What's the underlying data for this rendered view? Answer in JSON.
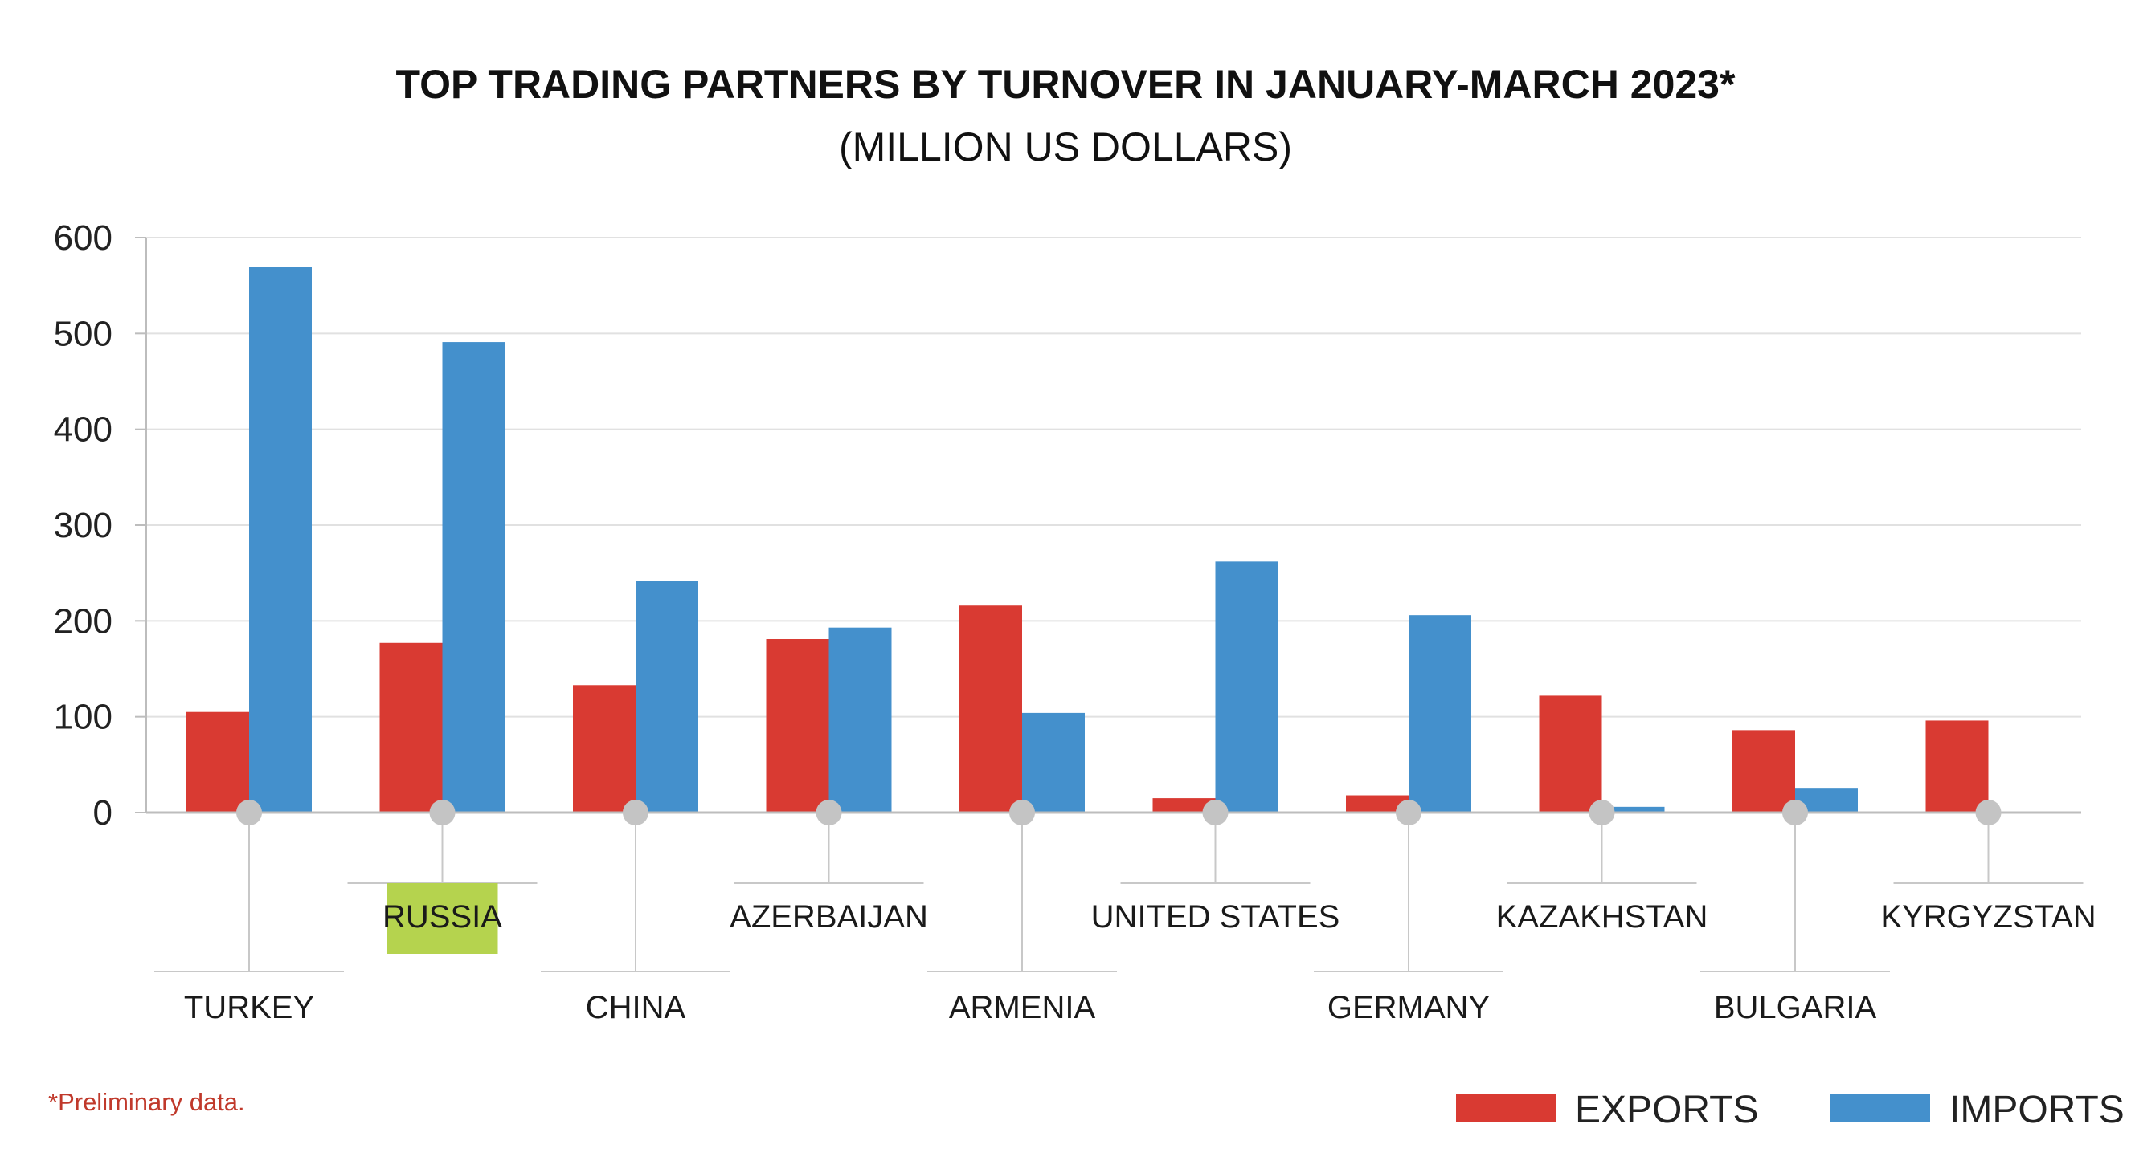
{
  "chart_data": {
    "type": "bar",
    "title": "TOP TRADING PARTNERS BY TURNOVER IN JANUARY-MARCH 2023*",
    "subtitle": "(MILLION US DOLLARS)",
    "categories": [
      "TURKEY",
      "RUSSIA",
      "CHINA",
      "AZERBAIJAN",
      "ARMENIA",
      "UNITED STATES",
      "GERMANY",
      "KAZAKHSTAN",
      "BULGARIA",
      "KYRGYZSTAN"
    ],
    "series": [
      {
        "name": "EXPORTS",
        "color": "#d93a32",
        "values": [
          105,
          177,
          133,
          181,
          216,
          15,
          18,
          122,
          86,
          96
        ]
      },
      {
        "name": "IMPORTS",
        "color": "#4490cc",
        "values": [
          569,
          491,
          242,
          193,
          104,
          262,
          206,
          6,
          25,
          1
        ]
      }
    ],
    "highlighted_category": "RUSSIA",
    "highlight_color": "#b5d34e",
    "ylim": [
      0,
      600
    ],
    "yticks": [
      0,
      100,
      200,
      300,
      400,
      500,
      600
    ],
    "grid": true,
    "legend_position": "bottom-right",
    "footnote": "*Preliminary data.",
    "footnote_color": "#c0392b"
  }
}
